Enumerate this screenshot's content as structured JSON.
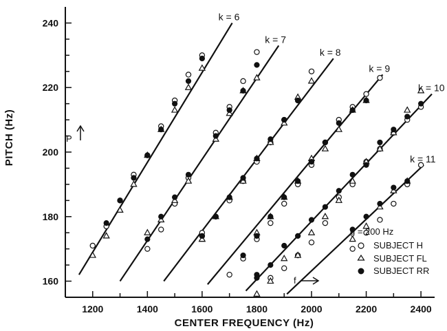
{
  "chart_data": {
    "type": "scatter",
    "xlabel": "CENTER FREQUENCY  (Hz)",
    "ylabel": "PITCH  (Hz)",
    "xlim": [
      1100,
      2450
    ],
    "ylim": [
      155,
      245
    ],
    "xticks": [
      1200,
      1400,
      1600,
      1800,
      2000,
      2200,
      2400
    ],
    "yticks": [
      160,
      180,
      200,
      220,
      240
    ],
    "lines": [
      {
        "label": "k = 6",
        "x": [
          1150,
          1710
        ],
        "y": [
          162,
          240
        ]
      },
      {
        "label": "k = 7",
        "x": [
          1300,
          1880
        ],
        "y": [
          160,
          233
        ]
      },
      {
        "label": "k = 8",
        "x": [
          1460,
          2080
        ],
        "y": [
          160,
          229
        ]
      },
      {
        "label": "k = 9",
        "x": [
          1620,
          2260
        ],
        "y": [
          159,
          224
        ]
      },
      {
        "label": "k = 10",
        "x": [
          1760,
          2440
        ],
        "y": [
          157,
          218
        ]
      },
      {
        "label": "k = 11",
        "x": [
          1910,
          2410
        ],
        "y": [
          156,
          196
        ]
      }
    ],
    "legend": {
      "position": "bottom-right",
      "header": "g = 200 Hz",
      "entries": [
        "SUBJECT  H",
        "SUBJECT  FL",
        "SUBJECT  RR"
      ]
    },
    "annotations": {
      "p_label": "P",
      "f_label": "f"
    },
    "series": [
      {
        "name": "SUBJECT  H",
        "marker": "open-circle",
        "points": [
          [
            1200,
            171
          ],
          [
            1250,
            177
          ],
          [
            1300,
            185
          ],
          [
            1350,
            193
          ],
          [
            1400,
            199
          ],
          [
            1450,
            208
          ],
          [
            1500,
            216
          ],
          [
            1550,
            224
          ],
          [
            1600,
            230
          ],
          [
            1400,
            170
          ],
          [
            1450,
            176
          ],
          [
            1500,
            184
          ],
          [
            1550,
            192
          ],
          [
            1600,
            174
          ],
          [
            1650,
            206
          ],
          [
            1700,
            214
          ],
          [
            1750,
            222
          ],
          [
            1800,
            231
          ],
          [
            1600,
            175
          ],
          [
            1650,
            180
          ],
          [
            1700,
            185
          ],
          [
            1750,
            191
          ],
          [
            1800,
            197
          ],
          [
            1850,
            203
          ],
          [
            1900,
            210
          ],
          [
            1950,
            216
          ],
          [
            2000,
            225
          ],
          [
            1700,
            162
          ],
          [
            1750,
            167
          ],
          [
            1800,
            173
          ],
          [
            1850,
            178
          ],
          [
            1900,
            184
          ],
          [
            1950,
            190
          ],
          [
            2000,
            196
          ],
          [
            2050,
            203
          ],
          [
            2100,
            210
          ],
          [
            2150,
            214
          ],
          [
            2200,
            218
          ],
          [
            2250,
            223
          ],
          [
            1850,
            161
          ],
          [
            1900,
            164
          ],
          [
            1950,
            168
          ],
          [
            2000,
            172
          ],
          [
            2050,
            178
          ],
          [
            2100,
            186
          ],
          [
            2150,
            190
          ],
          [
            2200,
            197
          ],
          [
            2250,
            201
          ],
          [
            2300,
            206
          ],
          [
            2350,
            210
          ],
          [
            2400,
            214
          ],
          [
            2150,
            170
          ],
          [
            2200,
            175
          ],
          [
            2250,
            179
          ],
          [
            2300,
            184
          ],
          [
            2350,
            190
          ],
          [
            2400,
            196
          ]
        ]
      },
      {
        "name": "SUBJECT  FL",
        "marker": "open-triangle",
        "points": [
          [
            1200,
            168
          ],
          [
            1250,
            174
          ],
          [
            1300,
            182
          ],
          [
            1350,
            190
          ],
          [
            1400,
            199
          ],
          [
            1450,
            207
          ],
          [
            1500,
            213
          ],
          [
            1550,
            220
          ],
          [
            1600,
            226
          ],
          [
            1400,
            175
          ],
          [
            1450,
            179
          ],
          [
            1500,
            185
          ],
          [
            1550,
            191
          ],
          [
            1600,
            173
          ],
          [
            1650,
            204
          ],
          [
            1700,
            212
          ],
          [
            1750,
            219
          ],
          [
            1800,
            223
          ],
          [
            1600,
            173
          ],
          [
            1650,
            180
          ],
          [
            1700,
            186
          ],
          [
            1750,
            191
          ],
          [
            1800,
            198
          ],
          [
            1850,
            203
          ],
          [
            1900,
            209
          ],
          [
            1950,
            217
          ],
          [
            2000,
            222
          ],
          [
            1800,
            175
          ],
          [
            1850,
            180
          ],
          [
            1900,
            186
          ],
          [
            1950,
            191
          ],
          [
            2000,
            198
          ],
          [
            2050,
            201
          ],
          [
            2100,
            207
          ],
          [
            2150,
            213
          ],
          [
            2200,
            216
          ],
          [
            1800,
            156
          ],
          [
            1850,
            160
          ],
          [
            1900,
            167
          ],
          [
            1950,
            168
          ],
          [
            2000,
            175
          ],
          [
            2050,
            180
          ],
          [
            2100,
            185
          ],
          [
            2150,
            191
          ],
          [
            2200,
            197
          ],
          [
            2250,
            201
          ],
          [
            2300,
            206
          ],
          [
            2350,
            213
          ],
          [
            2400,
            219
          ],
          [
            2150,
            173
          ],
          [
            2200,
            177
          ],
          [
            2250,
            183
          ],
          [
            2300,
            188
          ],
          [
            2350,
            191
          ]
        ]
      },
      {
        "name": "SUBJECT  RR",
        "marker": "filled-circle",
        "points": [
          [
            1250,
            178
          ],
          [
            1300,
            185
          ],
          [
            1350,
            192
          ],
          [
            1400,
            199
          ],
          [
            1450,
            207
          ],
          [
            1500,
            215
          ],
          [
            1550,
            222
          ],
          [
            1600,
            229
          ],
          [
            1400,
            173
          ],
          [
            1450,
            180
          ],
          [
            1500,
            186
          ],
          [
            1550,
            193
          ],
          [
            1650,
            205
          ],
          [
            1700,
            213
          ],
          [
            1750,
            219
          ],
          [
            1800,
            227
          ],
          [
            1600,
            174
          ],
          [
            1650,
            180
          ],
          [
            1700,
            186
          ],
          [
            1750,
            192
          ],
          [
            1800,
            198
          ],
          [
            1850,
            204
          ],
          [
            1900,
            210
          ],
          [
            1950,
            216
          ],
          [
            1750,
            168
          ],
          [
            1800,
            174
          ],
          [
            1850,
            180
          ],
          [
            1900,
            186
          ],
          [
            1950,
            191
          ],
          [
            2000,
            197
          ],
          [
            2050,
            203
          ],
          [
            2100,
            209
          ],
          [
            2150,
            213
          ],
          [
            2200,
            216
          ],
          [
            1800,
            162
          ],
          [
            1850,
            165
          ],
          [
            1900,
            171
          ],
          [
            1950,
            174
          ],
          [
            2000,
            179
          ],
          [
            2050,
            183
          ],
          [
            2100,
            188
          ],
          [
            2150,
            193
          ],
          [
            2200,
            196
          ],
          [
            2250,
            203
          ],
          [
            2300,
            207
          ],
          [
            2350,
            211
          ],
          [
            2400,
            215
          ],
          [
            1800,
            161
          ],
          [
            2150,
            176
          ],
          [
            2200,
            180
          ],
          [
            2250,
            184
          ],
          [
            2300,
            189
          ],
          [
            2350,
            191
          ]
        ]
      }
    ]
  }
}
